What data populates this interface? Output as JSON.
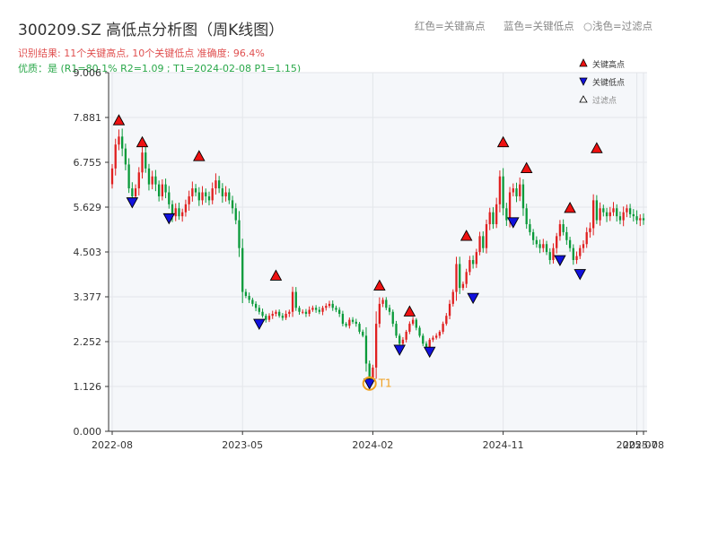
{
  "header": {
    "title": "300209.SZ 高低点分析图（周K线图）",
    "result_line": "识别结果: 11个关键高点, 10个关键低点   准确度: 96.4%",
    "quality_line": "优质：是  (R1=80.1%  R2=1.09 ; T1=2024-02-08 P1=1.15)",
    "legend_red": "红色=关键高点",
    "legend_blue": "蓝色=关键低点",
    "legend_light": "○浅色=过滤点"
  },
  "legend": {
    "high": "关键高点",
    "low": "关键低点",
    "filtered": "过滤点"
  },
  "colors": {
    "up": "#e02020",
    "down": "#0a9a3a",
    "high_marker": "#ee1111",
    "low_marker": "#1111dd",
    "t1_ring": "#f0a020",
    "plot_bg": "#f5f7fa",
    "grid": "#e3e6ea"
  },
  "chart_data": {
    "type": "candlestick",
    "title": "300209.SZ 高低点分析图（周K线图）",
    "yticks": [
      "0.000",
      "1.126",
      "2.252",
      "3.377",
      "4.503",
      "5.629",
      "6.755",
      "7.881",
      "9.006"
    ],
    "ylim": [
      0,
      9.006
    ],
    "xtick_labels": [
      "2022-08",
      "2023-05",
      "2024-02",
      "2024-11",
      "2025-07",
      "2025-08"
    ],
    "xticks": [
      {
        "label": "2022-08",
        "week": 0
      },
      {
        "label": "2023-05",
        "week": 39
      },
      {
        "label": "2024-02",
        "week": 78
      },
      {
        "label": "2024-11",
        "week": 117
      },
      {
        "label": "2025-07",
        "week": 157
      },
      {
        "label": "2025-08",
        "week": 159
      }
    ],
    "xlim": [
      0,
      159
    ],
    "grid": true,
    "closes": [
      6.6,
      7.2,
      7.4,
      7.1,
      6.7,
      6.1,
      5.9,
      6.1,
      6.5,
      7.0,
      6.6,
      6.2,
      6.4,
      6.2,
      5.9,
      6.2,
      6.0,
      5.7,
      5.4,
      5.6,
      5.4,
      5.5,
      5.7,
      5.9,
      6.1,
      6.0,
      5.8,
      6.0,
      5.9,
      5.8,
      6.1,
      6.3,
      6.1,
      5.9,
      6.0,
      5.8,
      5.6,
      5.3,
      4.6,
      3.5,
      3.4,
      3.3,
      3.2,
      3.1,
      3.0,
      2.9,
      2.8,
      2.9,
      2.95,
      3.0,
      2.9,
      2.85,
      2.95,
      3.0,
      3.5,
      3.1,
      3.0,
      3.0,
      2.95,
      3.05,
      3.1,
      3.05,
      3.0,
      3.1,
      3.15,
      3.2,
      3.1,
      3.05,
      2.95,
      2.7,
      2.65,
      2.8,
      2.75,
      2.7,
      2.5,
      2.4,
      1.7,
      1.3,
      1.6,
      2.7,
      3.2,
      3.3,
      3.1,
      3.0,
      2.7,
      2.4,
      2.2,
      2.3,
      2.5,
      2.7,
      2.8,
      2.6,
      2.4,
      2.2,
      2.1,
      2.3,
      2.35,
      2.4,
      2.5,
      2.7,
      2.9,
      3.2,
      3.5,
      4.2,
      3.6,
      3.7,
      4.0,
      4.3,
      4.2,
      4.5,
      4.9,
      4.6,
      5.2,
      5.5,
      5.2,
      5.7,
      6.4,
      5.6,
      5.3,
      6.0,
      6.1,
      5.9,
      6.2,
      5.6,
      5.2,
      5.0,
      4.8,
      4.7,
      4.6,
      4.7,
      4.5,
      4.3,
      4.6,
      4.9,
      5.2,
      5.0,
      4.8,
      4.6,
      4.3,
      4.4,
      4.6,
      4.7,
      5.0,
      5.1,
      5.8,
      5.3,
      5.6,
      5.5,
      5.4,
      5.5,
      5.6,
      5.4,
      5.3,
      5.5,
      5.6,
      5.45,
      5.4,
      5.3,
      5.35,
      5.3
    ],
    "key_highs": [
      {
        "week": 2,
        "price": 7.65
      },
      {
        "week": 9,
        "price": 7.1
      },
      {
        "week": 26,
        "price": 6.75
      },
      {
        "week": 49,
        "price": 3.75
      },
      {
        "week": 80,
        "price": 3.5
      },
      {
        "week": 89,
        "price": 2.85
      },
      {
        "week": 106,
        "price": 4.75
      },
      {
        "week": 117,
        "price": 7.1
      },
      {
        "week": 124,
        "price": 6.45
      },
      {
        "week": 137,
        "price": 5.45
      },
      {
        "week": 145,
        "price": 6.95
      }
    ],
    "key_lows": [
      {
        "week": 6,
        "price": 5.75
      },
      {
        "week": 17,
        "price": 5.35
      },
      {
        "week": 44,
        "price": 2.7
      },
      {
        "week": 77,
        "price": 1.2
      },
      {
        "week": 86,
        "price": 2.05
      },
      {
        "week": 95,
        "price": 2.0
      },
      {
        "week": 108,
        "price": 3.35
      },
      {
        "week": 120,
        "price": 5.25
      },
      {
        "week": 134,
        "price": 4.3
      },
      {
        "week": 140,
        "price": 3.95
      }
    ],
    "t1": {
      "week": 77,
      "price": 1.2,
      "label": "T1"
    }
  }
}
